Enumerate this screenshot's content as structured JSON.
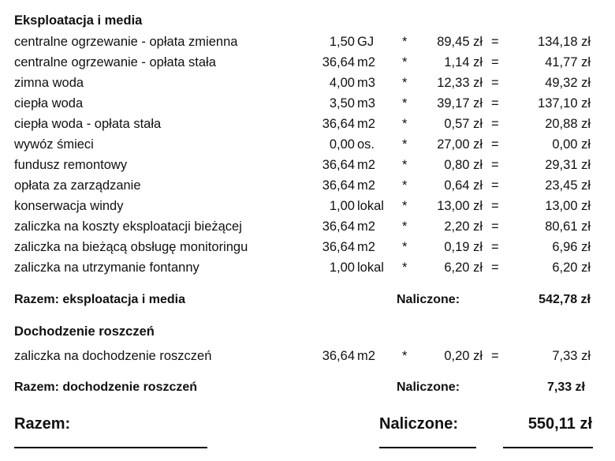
{
  "sections": [
    {
      "title": "Eksploatacja i media",
      "items": [
        {
          "label": "centralne ogrzewanie - opłata zmienna",
          "qty": "1,50",
          "unit": "GJ",
          "op": "*",
          "price": "89,45 zł",
          "eq": "=",
          "total": "134,18 zł"
        },
        {
          "label": "centralne ogrzewanie - opłata stała",
          "qty": "36,64",
          "unit": "m2",
          "op": "*",
          "price": "1,14 zł",
          "eq": "=",
          "total": "41,77 zł"
        },
        {
          "label": "zimna woda",
          "qty": "4,00",
          "unit": "m3",
          "op": "*",
          "price": "12,33 zł",
          "eq": "=",
          "total": "49,32 zł"
        },
        {
          "label": "ciepła woda",
          "qty": "3,50",
          "unit": "m3",
          "op": "*",
          "price": "39,17 zł",
          "eq": "=",
          "total": "137,10 zł"
        },
        {
          "label": "ciepła woda - opłata stała",
          "qty": "36,64",
          "unit": "m2",
          "op": "*",
          "price": "0,57 zł",
          "eq": "=",
          "total": "20,88 zł"
        },
        {
          "label": "wywóz śmieci",
          "qty": "0,00",
          "unit": "os.",
          "op": "*",
          "price": "27,00 zł",
          "eq": "=",
          "total": "0,00 zł"
        },
        {
          "label": "fundusz remontowy",
          "qty": "36,64",
          "unit": "m2",
          "op": "*",
          "price": "0,80 zł",
          "eq": "=",
          "total": "29,31 zł"
        },
        {
          "label": "opłata za zarządzanie",
          "qty": "36,64",
          "unit": "m2",
          "op": "*",
          "price": "0,64 zł",
          "eq": "=",
          "total": "23,45 zł"
        },
        {
          "label": "konserwacja windy",
          "qty": "1,00",
          "unit": "lokal",
          "op": "*",
          "price": "13,00 zł",
          "eq": "=",
          "total": "13,00 zł"
        },
        {
          "label": "zaliczka na koszty eksploatacji bieżącej",
          "qty": "36,64",
          "unit": "m2",
          "op": "*",
          "price": "2,20 zł",
          "eq": "=",
          "total": "80,61 zł"
        },
        {
          "label": "zaliczka na bieżącą obsługę monitoringu",
          "qty": "36,64",
          "unit": "m2",
          "op": "*",
          "price": "0,19 zł",
          "eq": "=",
          "total": "6,96 zł"
        },
        {
          "label": "zaliczka na utrzymanie fontanny",
          "qty": "1,00",
          "unit": "lokal",
          "op": "*",
          "price": "6,20 zł",
          "eq": "=",
          "total": "6,20 zł"
        }
      ],
      "summary": {
        "label": "Razem: eksploatacja i media",
        "charged_label": "Naliczone:",
        "amount": "542,78 zł"
      }
    },
    {
      "title": "Dochodzenie roszczeń",
      "items": [
        {
          "label": "zaliczka na dochodzenie roszczeń",
          "qty": "36,64",
          "unit": "m2",
          "op": "*",
          "price": "0,20 zł",
          "eq": "=",
          "total": "7,33 zł"
        }
      ],
      "summary": {
        "label": "Razem: dochodzenie roszczeń",
        "charged_label": "Naliczone:",
        "amount": "7,33 zł"
      }
    }
  ],
  "grand_total": {
    "label": "Razem:",
    "charged_label": "Naliczone:",
    "amount": "550,11 zł"
  }
}
